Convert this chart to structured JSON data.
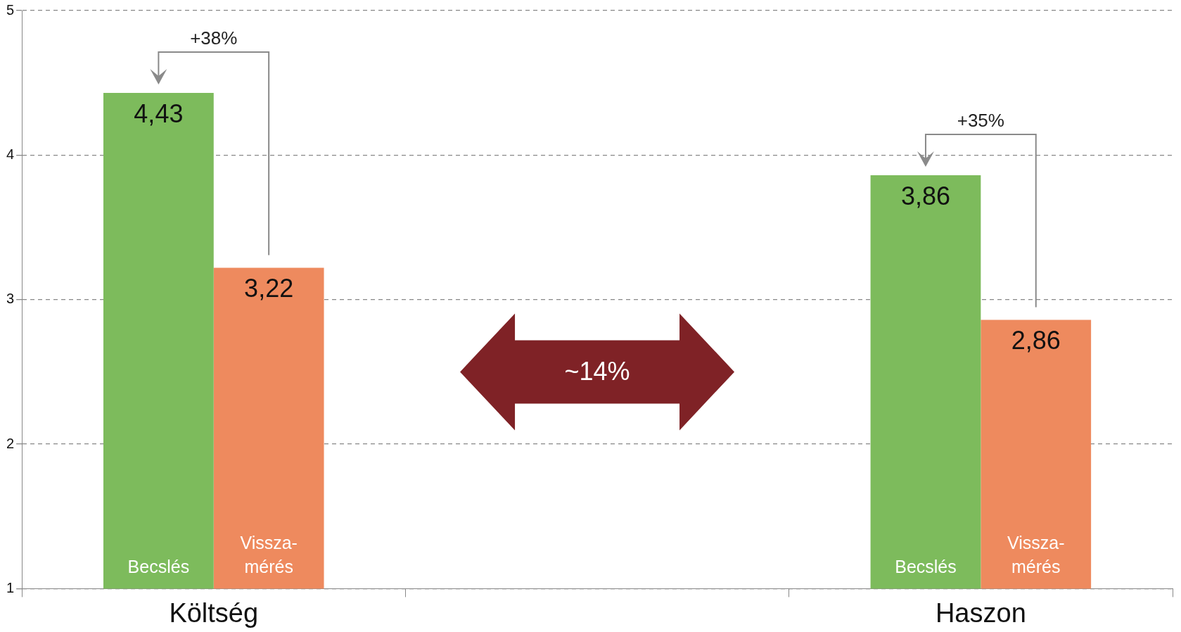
{
  "chart_data": {
    "type": "bar",
    "categories": [
      "Költség",
      null,
      "Haszon"
    ],
    "series": [
      {
        "name": "Becslés",
        "color": "#7dbb5c",
        "values": [
          4.43,
          null,
          3.86
        ],
        "value_labels": [
          "4,43",
          null,
          "3,86"
        ]
      },
      {
        "name": "Vissza-mérés",
        "color": "#ee8a5e",
        "values": [
          3.22,
          null,
          2.86
        ],
        "value_labels": [
          "3,22",
          null,
          "2,86"
        ]
      }
    ],
    "ylim": [
      1,
      5
    ],
    "yticks": [
      1,
      2,
      3,
      4,
      5
    ],
    "grid": "y",
    "line_style": "dashed",
    "legend": false,
    "annotations": [
      "+38%",
      "+35%",
      "~14%"
    ]
  }
}
